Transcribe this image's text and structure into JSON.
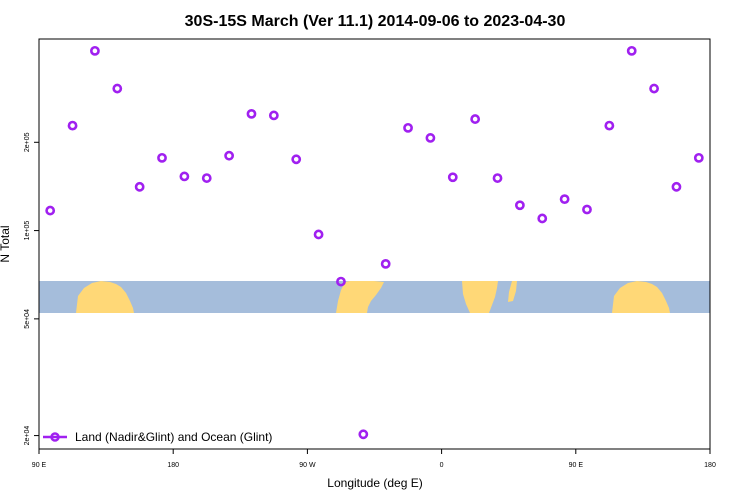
{
  "chart_data": {
    "type": "scatter",
    "title": "30S-15S March (Ver 11.1)   2014-09-06 to 2023-04-30",
    "xlabel": "Longitude (deg E)",
    "ylabel": "N Total",
    "x_scale": "linear",
    "y_scale": "log",
    "xlim": [
      90,
      540
    ],
    "ylim": [
      18000,
      450000
    ],
    "x_ticks": [
      {
        "value": 90,
        "label": "90 E"
      },
      {
        "value": 180,
        "label": "180"
      },
      {
        "value": 270,
        "label": "90 W"
      },
      {
        "value": 360,
        "label": "0"
      },
      {
        "value": 450,
        "label": "90 E"
      },
      {
        "value": 540,
        "label": "180"
      }
    ],
    "y_ticks": [
      {
        "value": 20000,
        "label": "2e+04"
      },
      {
        "value": 50000,
        "label": "5e+04"
      },
      {
        "value": 100000,
        "label": "1e+05"
      },
      {
        "value": 200000,
        "label": "2e+05"
      }
    ],
    "grid": false,
    "legend_position": "bottom-left",
    "series": [
      {
        "name": "Land (Nadir&Glint) and Ocean (Glint)",
        "color": "#a020f0",
        "marker": "open-circle",
        "points": [
          {
            "x": 97.5,
            "y": 117000
          },
          {
            "x": 112.5,
            "y": 228000
          },
          {
            "x": 127.5,
            "y": 410000
          },
          {
            "x": 142.5,
            "y": 305000
          },
          {
            "x": 157.5,
            "y": 141000
          },
          {
            "x": 172.5,
            "y": 177000
          },
          {
            "x": 187.5,
            "y": 153000
          },
          {
            "x": 202.5,
            "y": 151000
          },
          {
            "x": 217.5,
            "y": 180000
          },
          {
            "x": 232.5,
            "y": 250000
          },
          {
            "x": 247.5,
            "y": 247000
          },
          {
            "x": 262.5,
            "y": 175000
          },
          {
            "x": 277.5,
            "y": 97000
          },
          {
            "x": 292.5,
            "y": 67000
          },
          {
            "x": 307.5,
            "y": 20200
          },
          {
            "x": 322.5,
            "y": 77000
          },
          {
            "x": 337.5,
            "y": 224000
          },
          {
            "x": 352.5,
            "y": 207000
          },
          {
            "x": 367.5,
            "y": 152000
          },
          {
            "x": 382.5,
            "y": 240000
          },
          {
            "x": 397.5,
            "y": 151000
          },
          {
            "x": 412.5,
            "y": 122000
          },
          {
            "x": 427.5,
            "y": 110000
          },
          {
            "x": 442.5,
            "y": 128000
          },
          {
            "x": 457.5,
            "y": 118000
          },
          {
            "x": 472.5,
            "y": 228000
          },
          {
            "x": 487.5,
            "y": 410000
          },
          {
            "x": 502.5,
            "y": 305000
          },
          {
            "x": 517.5,
            "y": 141000
          },
          {
            "x": 532.5,
            "y": 177000
          }
        ]
      }
    ],
    "background_map": {
      "ocean_color": "#a5bddb",
      "land_color": "#ffd877",
      "lat_range": "30S-15S"
    }
  }
}
